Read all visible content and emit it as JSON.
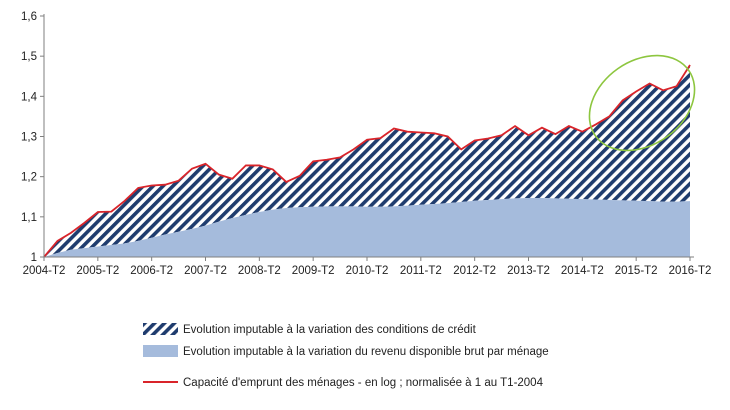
{
  "chart_data": {
    "type": "area",
    "title": "",
    "xlabel": "",
    "ylabel": "",
    "ylim": [
      1,
      1.6
    ],
    "yticks": [
      "1",
      "1,1",
      "1,2",
      "1,3",
      "1,4",
      "1,5",
      "1,6"
    ],
    "x_tick_labels": [
      "2004-T2",
      "2005-T2",
      "2006-T2",
      "2007-T2",
      "2008-T2",
      "2009-T2",
      "2010-T2",
      "2011-T2",
      "2012-T2",
      "2013-T2",
      "2014-T2",
      "2015-T2",
      "2016-T2"
    ],
    "grid": false,
    "legend_position": "bottom",
    "series": [
      {
        "name": "Evolution imputable à la variation des conditions de crédit",
        "style": "hatched",
        "color": "#1f3c6e"
      },
      {
        "name": "Evolution imputable à la variation du revenu disponible brut par ménage",
        "style": "filled",
        "color": "#a5bbdc",
        "values": [
          1.0,
          1.01,
          1.018,
          1.022,
          1.026,
          1.03,
          1.034,
          1.04,
          1.048,
          1.056,
          1.063,
          1.07,
          1.078,
          1.088,
          1.097,
          1.105,
          1.112,
          1.118,
          1.122,
          1.124,
          1.125,
          1.126,
          1.126,
          1.126,
          1.125,
          1.125,
          1.126,
          1.128,
          1.13,
          1.132,
          1.134,
          1.137,
          1.14,
          1.142,
          1.144,
          1.146,
          1.147,
          1.147,
          1.146,
          1.145,
          1.144,
          1.143,
          1.142,
          1.141,
          1.14,
          1.139,
          1.138,
          1.138,
          1.139,
          1.14,
          1.142,
          1.144,
          1.146,
          1.148
        ]
      },
      {
        "name": "Capacité d'emprunt des ménages - en log ; normalisée à 1 au T1-2004",
        "style": "line",
        "color": "#d9242a",
        "values": [
          1.0,
          1.04,
          1.06,
          1.085,
          1.112,
          1.113,
          1.14,
          1.172,
          1.178,
          1.18,
          1.19,
          1.22,
          1.232,
          1.205,
          1.195,
          1.228,
          1.228,
          1.218,
          1.187,
          1.202,
          1.238,
          1.242,
          1.248,
          1.268,
          1.292,
          1.296,
          1.32,
          1.312,
          1.31,
          1.308,
          1.3,
          1.268,
          1.29,
          1.295,
          1.303,
          1.326,
          1.303,
          1.322,
          1.306,
          1.326,
          1.312,
          1.33,
          1.35,
          1.39,
          1.412,
          1.432,
          1.415,
          1.425,
          1.478
        ]
      }
    ],
    "annotation_ellipse_color": "#8dc63f"
  }
}
